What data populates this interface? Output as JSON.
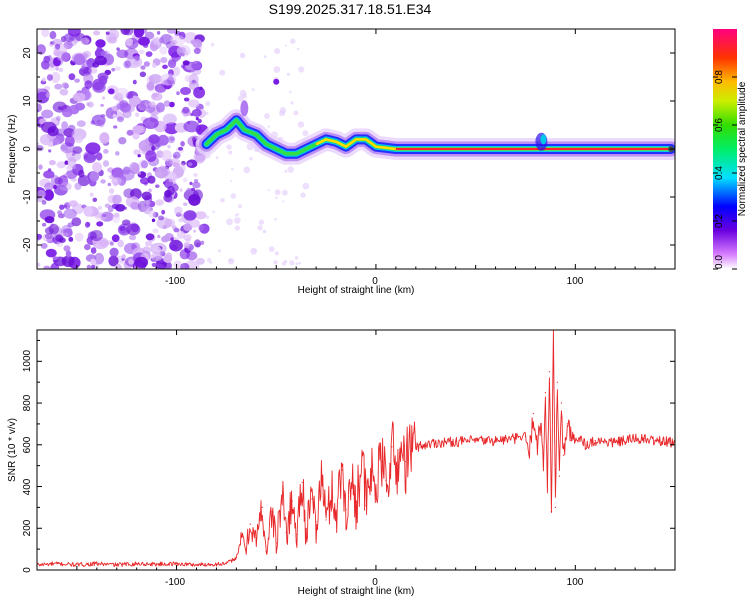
{
  "title": "S199.2025.317.18.51.E34",
  "chart_data": [
    {
      "type": "heatmap",
      "xlabel": "Height of straight line (km)",
      "ylabel": "Frequency (Hz)",
      "xlim": [
        -170,
        150
      ],
      "ylim": [
        -25,
        25
      ],
      "xticks": [
        -100,
        0,
        100
      ],
      "yticks": [
        -20,
        -10,
        0,
        10,
        20
      ],
      "colorbar": {
        "label": "Normalized spectral amplitude",
        "range": [
          0,
          1
        ],
        "ticks": [
          0.0,
          0.2,
          0.4,
          0.6,
          0.8
        ]
      },
      "ridge": [
        {
          "x": -85,
          "y": 1
        },
        {
          "x": -80,
          "y": 3
        },
        {
          "x": -75,
          "y": 4
        },
        {
          "x": -70,
          "y": 6
        },
        {
          "x": -66,
          "y": 4
        },
        {
          "x": -60,
          "y": 3
        },
        {
          "x": -55,
          "y": 1
        },
        {
          "x": -50,
          "y": 0
        },
        {
          "x": -45,
          "y": -1
        },
        {
          "x": -40,
          "y": -1
        },
        {
          "x": -35,
          "y": 0
        },
        {
          "x": -30,
          "y": 1
        },
        {
          "x": -25,
          "y": 2
        },
        {
          "x": -20,
          "y": 1.5
        },
        {
          "x": -15,
          "y": 0.5
        },
        {
          "x": -10,
          "y": 2
        },
        {
          "x": -5,
          "y": 2
        },
        {
          "x": 0,
          "y": 0.5
        },
        {
          "x": 10,
          "y": 0
        },
        {
          "x": 20,
          "y": 0
        },
        {
          "x": 75,
          "y": 0
        },
        {
          "x": 80,
          "y": 0
        },
        {
          "x": 85,
          "y": 0
        },
        {
          "x": 90,
          "y": 0
        },
        {
          "x": 100,
          "y": 0
        },
        {
          "x": 148,
          "y": 0
        }
      ]
    },
    {
      "type": "line",
      "xlabel": "Height of straight line (km)",
      "ylabel": "SNR (10 * v/v)",
      "xlim": [
        -170,
        150
      ],
      "ylim": [
        0,
        1150
      ],
      "xticks": [
        -100,
        0,
        100
      ],
      "yticks": [
        0,
        200,
        400,
        600,
        800,
        1000
      ],
      "color": "#e8282a",
      "series": [
        {
          "name": "SNR",
          "x": [
            -170,
            -160,
            -150,
            -140,
            -130,
            -120,
            -110,
            -100,
            -90,
            -80,
            -75,
            -70,
            -67,
            -65,
            -63,
            -60,
            -57,
            -55,
            -52,
            -50,
            -47,
            -45,
            -42,
            -40,
            -37,
            -35,
            -32,
            -30,
            -27,
            -25,
            -22,
            -20,
            -17,
            -15,
            -12,
            -10,
            -7,
            -5,
            -2,
            0,
            3,
            5,
            8,
            10,
            12,
            15,
            18,
            20,
            25,
            30,
            40,
            50,
            60,
            70,
            75,
            77,
            79,
            81,
            83,
            84,
            85,
            86,
            87,
            88,
            89,
            90,
            91,
            92,
            93,
            94,
            96,
            98,
            100,
            103,
            105,
            110,
            120,
            130,
            140,
            150
          ],
          "y": [
            25,
            30,
            25,
            30,
            25,
            30,
            28,
            30,
            25,
            28,
            30,
            60,
            160,
            100,
            220,
            140,
            300,
            90,
            280,
            130,
            360,
            180,
            330,
            170,
            420,
            200,
            340,
            230,
            450,
            240,
            380,
            270,
            480,
            290,
            420,
            330,
            550,
            310,
            470,
            400,
            520,
            430,
            590,
            460,
            560,
            520,
            580,
            590,
            600,
            610,
            615,
            620,
            620,
            630,
            640,
            560,
            750,
            600,
            700,
            500,
            850,
            400,
            950,
            280,
            1150,
            300,
            900,
            450,
            800,
            550,
            700,
            620,
            620,
            640,
            600,
            620,
            610,
            630,
            620,
            610
          ]
        }
      ]
    }
  ]
}
